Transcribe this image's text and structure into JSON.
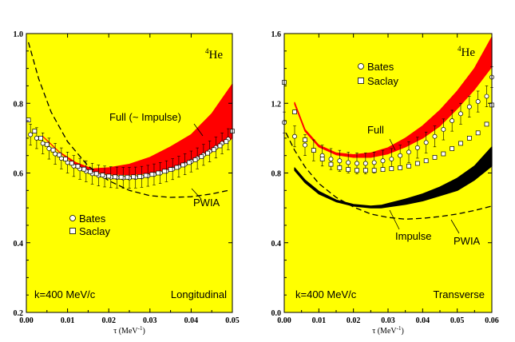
{
  "chart_data": [
    {
      "type": "line",
      "panel": "left",
      "isotope_mass": "4",
      "isotope_symbol": "He",
      "mode_label": "Longitudinal",
      "kinematics_label": "k=400 MeV/c",
      "xlabel": "τ (MeV",
      "xlabel_exp": "-1",
      "xlabel_close": ")",
      "xlim": [
        0.0,
        0.05
      ],
      "ylim": [
        0.2,
        1.0
      ],
      "xticks": [
        "0.00",
        "0.01",
        "0.02",
        "0.03",
        "0.04",
        "0.05"
      ],
      "yticks": [
        "0.2",
        "0.4",
        "0.6",
        "0.8",
        "1.0"
      ],
      "colors": {
        "background": "#ffff00",
        "full": "#ff0000",
        "pwia": "#000000"
      },
      "bands": [
        {
          "name": "Full (~ Impulse)",
          "color": "#ff0000",
          "x": [
            0.004,
            0.008,
            0.012,
            0.016,
            0.02,
            0.025,
            0.03,
            0.035,
            0.04,
            0.045,
            0.05
          ],
          "lower": [
            0.705,
            0.66,
            0.625,
            0.605,
            0.597,
            0.595,
            0.6,
            0.612,
            0.63,
            0.66,
            0.7
          ],
          "upper": [
            0.705,
            0.66,
            0.63,
            0.612,
            0.615,
            0.625,
            0.645,
            0.675,
            0.71,
            0.77,
            0.855
          ]
        }
      ],
      "series": [
        {
          "name": "PWIA",
          "style": "dashed",
          "x": [
            0.0005,
            0.003,
            0.006,
            0.01,
            0.015,
            0.02,
            0.025,
            0.03,
            0.035,
            0.04,
            0.045,
            0.049
          ],
          "y": [
            0.975,
            0.87,
            0.775,
            0.69,
            0.62,
            0.578,
            0.55,
            0.535,
            0.53,
            0.532,
            0.54,
            0.55
          ]
        }
      ],
      "data_points": [
        {
          "name": "Bates",
          "marker": "circle",
          "x": [
            0.001,
            0.0025,
            0.004,
            0.0055,
            0.007,
            0.0085,
            0.01,
            0.0115,
            0.013,
            0.0145,
            0.016,
            0.0175,
            0.019,
            0.0205,
            0.022,
            0.0235,
            0.025,
            0.0265,
            0.028,
            0.0295,
            0.031,
            0.0325,
            0.034,
            0.0355,
            0.037,
            0.0385,
            0.04,
            0.0415,
            0.043,
            0.0445,
            0.046,
            0.0475,
            0.049
          ],
          "y": [
            0.71,
            0.7,
            0.685,
            0.67,
            0.655,
            0.642,
            0.63,
            0.62,
            0.612,
            0.605,
            0.598,
            0.593,
            0.59,
            0.588,
            0.587,
            0.586,
            0.586,
            0.587,
            0.589,
            0.592,
            0.596,
            0.6,
            0.605,
            0.611,
            0.618,
            0.625,
            0.633,
            0.642,
            0.652,
            0.662,
            0.673,
            0.685,
            0.697
          ],
          "err": 0.03
        },
        {
          "name": "Saclay",
          "marker": "square",
          "x": [
            0.0005,
            0.002,
            0.0035,
            0.005,
            0.0065,
            0.008,
            0.0095,
            0.011,
            0.0125,
            0.014,
            0.0155,
            0.017,
            0.0185,
            0.02,
            0.0215,
            0.023,
            0.0245,
            0.026,
            0.0275,
            0.029,
            0.0305,
            0.032,
            0.0335,
            0.035,
            0.0365,
            0.038,
            0.0395,
            0.041,
            0.0425,
            0.044,
            0.0455,
            0.047,
            0.0485,
            0.05
          ],
          "y": [
            0.752,
            0.72,
            0.7,
            0.682,
            0.666,
            0.652,
            0.64,
            0.628,
            0.619,
            0.611,
            0.604,
            0.598,
            0.594,
            0.591,
            0.589,
            0.588,
            0.588,
            0.589,
            0.59,
            0.593,
            0.596,
            0.6,
            0.605,
            0.61,
            0.616,
            0.623,
            0.63,
            0.638,
            0.647,
            0.657,
            0.667,
            0.678,
            0.69,
            0.72
          ]
        }
      ],
      "labels": {
        "full": "Full (~ Impulse)",
        "pwia": "PWIA"
      },
      "legend": {
        "bates": "Bates",
        "saclay": "Saclay"
      }
    },
    {
      "type": "line",
      "panel": "right",
      "isotope_mass": "4",
      "isotope_symbol": "He",
      "mode_label": "Transverse",
      "kinematics_label": "k=400 MeV/c",
      "xlabel": "τ (MeV",
      "xlabel_exp": "-1",
      "xlabel_close": ")",
      "xlim": [
        0.0,
        0.06
      ],
      "ylim": [
        0.0,
        1.6
      ],
      "xticks": [
        "0.00",
        "0.01",
        "0.02",
        "0.03",
        "0.04",
        "0.05",
        "0.06"
      ],
      "yticks": [
        "0.0",
        "0.4",
        "0.8",
        "1.2",
        "1.6"
      ],
      "colors": {
        "background": "#ffff00",
        "full": "#ff0000",
        "impulse": "#000000",
        "pwia": "#000000"
      },
      "bands": [
        {
          "name": "Full",
          "color": "#ff0000",
          "x": [
            0.003,
            0.006,
            0.01,
            0.015,
            0.02,
            0.025,
            0.03,
            0.035,
            0.04,
            0.045,
            0.05,
            0.055,
            0.06
          ],
          "lower": [
            1.195,
            1.04,
            0.95,
            0.905,
            0.89,
            0.89,
            0.91,
            0.95,
            1.0,
            1.07,
            1.17,
            1.28,
            1.41
          ],
          "upper": [
            1.205,
            1.05,
            0.96,
            0.915,
            0.905,
            0.915,
            0.945,
            1.0,
            1.07,
            1.16,
            1.27,
            1.4,
            1.58
          ]
        },
        {
          "name": "Impulse",
          "color": "#000000",
          "x": [
            0.003,
            0.006,
            0.01,
            0.015,
            0.02,
            0.025,
            0.028,
            0.035,
            0.04,
            0.045,
            0.05,
            0.055,
            0.06
          ],
          "lower": [
            0.815,
            0.745,
            0.68,
            0.635,
            0.61,
            0.6,
            0.6,
            0.62,
            0.64,
            0.67,
            0.7,
            0.76,
            0.84
          ],
          "upper": [
            0.83,
            0.76,
            0.695,
            0.645,
            0.62,
            0.61,
            0.615,
            0.65,
            0.68,
            0.72,
            0.77,
            0.84,
            0.95
          ]
        }
      ],
      "series": [
        {
          "name": "PWIA",
          "style": "dashed",
          "x": [
            0.0005,
            0.003,
            0.006,
            0.01,
            0.015,
            0.02,
            0.025,
            0.03,
            0.035,
            0.04,
            0.045,
            0.05,
            0.055,
            0.06
          ],
          "y": [
            1.03,
            0.93,
            0.835,
            0.74,
            0.66,
            0.605,
            0.565,
            0.545,
            0.535,
            0.54,
            0.55,
            0.565,
            0.585,
            0.61
          ]
        }
      ],
      "data_points": [
        {
          "name": "Bates",
          "marker": "circle",
          "x": [
            0.0,
            0.003,
            0.006,
            0.0085,
            0.011,
            0.0135,
            0.016,
            0.0185,
            0.021,
            0.0235,
            0.026,
            0.0285,
            0.031,
            0.0335,
            0.036,
            0.0385,
            0.041,
            0.0435,
            0.046,
            0.0485,
            0.051,
            0.0535,
            0.056,
            0.0585,
            0.06
          ],
          "y": [
            1.09,
            1.01,
            0.96,
            0.93,
            0.9,
            0.88,
            0.87,
            0.86,
            0.855,
            0.855,
            0.86,
            0.87,
            0.88,
            0.9,
            0.92,
            0.945,
            0.975,
            1.01,
            1.05,
            1.1,
            1.14,
            1.18,
            1.21,
            1.24,
            1.35
          ],
          "err": 0.06
        },
        {
          "name": "Saclay",
          "marker": "square",
          "x": [
            0.0,
            0.003,
            0.006,
            0.0085,
            0.011,
            0.0135,
            0.016,
            0.0185,
            0.021,
            0.0235,
            0.026,
            0.0285,
            0.031,
            0.0335,
            0.036,
            0.0385,
            0.041,
            0.0435,
            0.046,
            0.0485,
            0.051,
            0.0535,
            0.056,
            0.0585,
            0.06
          ],
          "y": [
            1.32,
            1.15,
            0.99,
            0.93,
            0.88,
            0.85,
            0.83,
            0.82,
            0.815,
            0.815,
            0.815,
            0.82,
            0.825,
            0.83,
            0.84,
            0.855,
            0.87,
            0.89,
            0.91,
            0.94,
            0.97,
            1.0,
            1.03,
            1.08,
            1.19
          ]
        }
      ],
      "labels": {
        "full": "Full",
        "impulse": "Impulse",
        "pwia": "PWIA"
      },
      "legend": {
        "bates": "Bates",
        "saclay": "Saclay"
      }
    }
  ]
}
